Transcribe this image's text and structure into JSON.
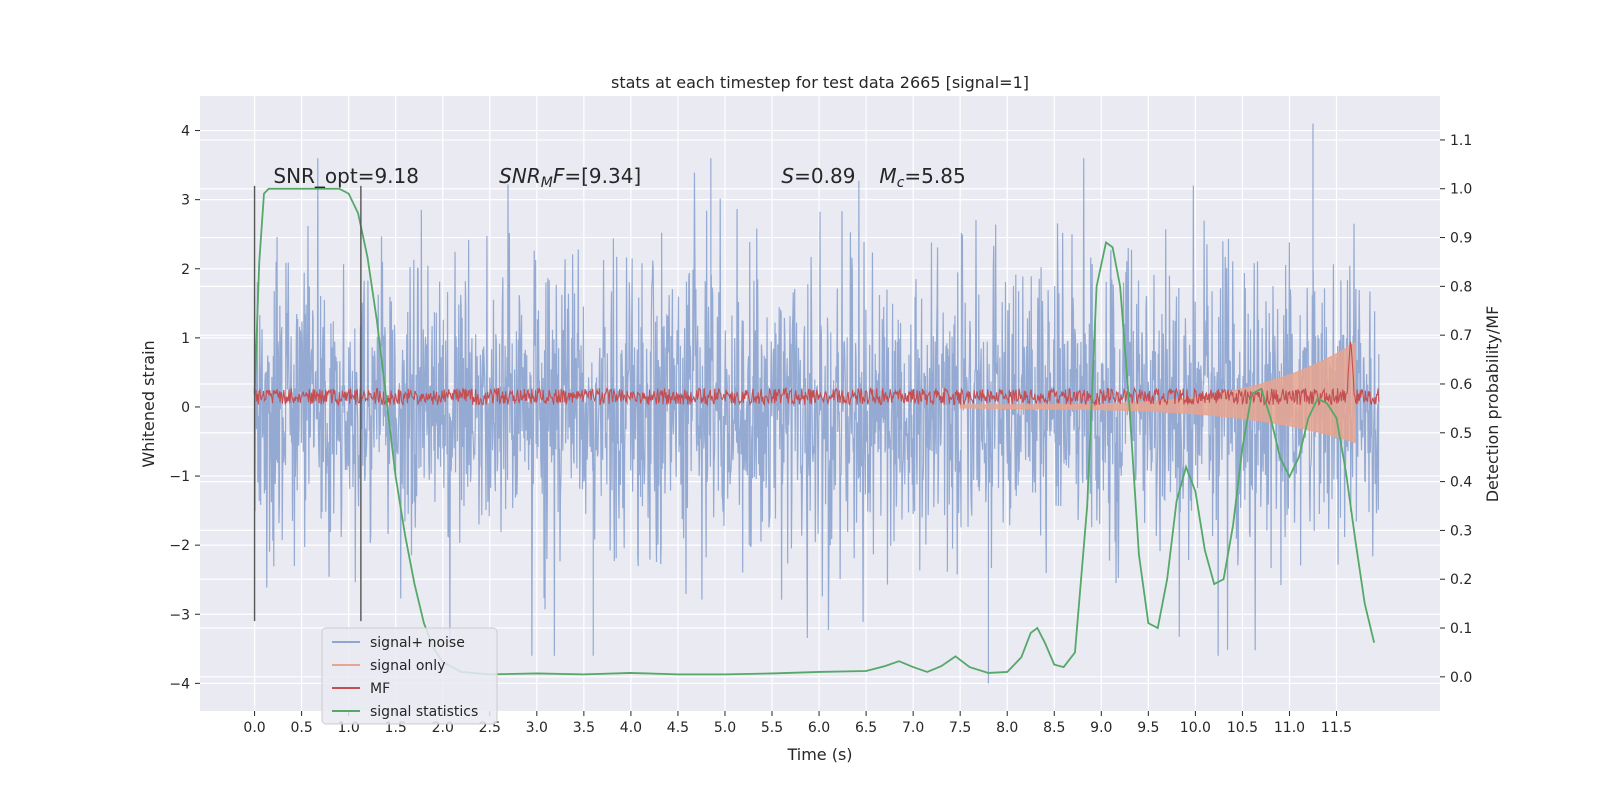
{
  "chart_data": {
    "type": "line",
    "title": "stats at each timestep for test data 2665 [signal=1]",
    "xlabel": "Time (s)",
    "ylabel": "Whitened strain",
    "y2label": "Detection probability/MF",
    "xlim": [
      -0.58,
      12.6
    ],
    "ylim": [
      -4.4,
      4.5
    ],
    "y2lim": [
      -0.07,
      1.19
    ],
    "xticks": [
      0.0,
      0.5,
      1.0,
      1.5,
      2.0,
      2.5,
      3.0,
      3.5,
      4.0,
      4.5,
      5.0,
      5.5,
      6.0,
      6.5,
      7.0,
      7.5,
      8.0,
      8.5,
      9.0,
      9.5,
      10.0,
      10.5,
      11.0,
      11.5
    ],
    "xtick_labels": [
      "0.0",
      "0.5",
      "1.0",
      "1.5",
      "2.0",
      "2.5",
      "3.0",
      "3.5",
      "4.0",
      "4.5",
      "5.0",
      "5.5",
      "6.0",
      "6.5",
      "7.0",
      "7.5",
      "8.0",
      "8.5",
      "9.0",
      "9.5",
      "10.0",
      "10.5",
      "11.0",
      "11.5"
    ],
    "yticks": [
      -4,
      -3,
      -2,
      -1,
      0,
      1,
      2,
      3,
      4
    ],
    "ytick_labels": [
      "−4",
      "−3",
      "−2",
      "−1",
      "0",
      "1",
      "2",
      "3",
      "4"
    ],
    "y2ticks": [
      0.0,
      0.1,
      0.2,
      0.3,
      0.4,
      0.5,
      0.6,
      0.7,
      0.8,
      0.9,
      1.0,
      1.1
    ],
    "y2tick_labels": [
      "0.0",
      "0.1",
      "0.2",
      "0.3",
      "0.4",
      "0.5",
      "0.6",
      "0.7",
      "0.8",
      "0.9",
      "1.0",
      "1.1"
    ],
    "grid": true,
    "legend_position": "bottom-left",
    "annotations": [
      {
        "text": "SNR_opt=9.18",
        "x": 0.2,
        "y": 3.3
      },
      {
        "text": "SNR_MF=[9.34]",
        "x": 2.6,
        "y": 3.3
      },
      {
        "text": "S=0.89   M_c=5.85",
        "x": 5.6,
        "y": 3.3
      }
    ],
    "vlines": [
      {
        "x": 0.0,
        "ymin": -3.1,
        "ymax": 3.2
      },
      {
        "x": 1.13,
        "ymin": -3.1,
        "ymax": 3.2
      }
    ],
    "series": [
      {
        "name": "signal+ noise",
        "color": "#8fa6d1",
        "axis": "left",
        "kind": "noise",
        "x_range": [
          0.0,
          11.95
        ],
        "std": 1.0,
        "note_peaks": [
          {
            "x": 11.25,
            "y": 4.1
          },
          {
            "x": 7.8,
            "y": -4.0
          },
          {
            "x": 3.6,
            "y": -3.6
          },
          {
            "x": 4.85,
            "y": 3.6
          }
        ]
      },
      {
        "name": "signal only",
        "color": "#e8a48e",
        "axis": "left",
        "kind": "chirp",
        "x_range": [
          7.5,
          11.7
        ],
        "peak_amplitude": 0.9
      },
      {
        "name": "MF",
        "color": "#c44e52",
        "axis": "left",
        "kind": "mf",
        "x_range": [
          0.0,
          11.95
        ],
        "mean": 0.15,
        "spread": 0.12,
        "peak": {
          "x": 11.65,
          "y": 1.0
        }
      },
      {
        "name": "signal statistics",
        "color": "#55a868",
        "axis": "right",
        "kind": "line",
        "x": [
          0.0,
          0.05,
          0.1,
          0.15,
          0.2,
          0.3,
          0.5,
          0.7,
          0.9,
          1.0,
          1.1,
          1.2,
          1.3,
          1.4,
          1.5,
          1.6,
          1.7,
          1.8,
          1.9,
          2.0,
          2.1,
          2.2,
          2.5,
          3.0,
          3.5,
          4.0,
          4.5,
          5.0,
          5.5,
          6.0,
          6.5,
          6.7,
          6.85,
          7.0,
          7.15,
          7.3,
          7.45,
          7.6,
          7.8,
          8.0,
          8.15,
          8.25,
          8.32,
          8.4,
          8.5,
          8.6,
          8.72,
          8.85,
          8.95,
          9.05,
          9.12,
          9.2,
          9.3,
          9.4,
          9.5,
          9.6,
          9.7,
          9.8,
          9.9,
          10.0,
          10.1,
          10.2,
          10.3,
          10.4,
          10.5,
          10.6,
          10.7,
          10.8,
          10.9,
          11.0,
          11.1,
          11.2,
          11.3,
          11.4,
          11.5,
          11.6,
          11.7,
          11.8,
          11.9
        ],
        "y": [
          0.58,
          0.85,
          0.99,
          1.0,
          1.0,
          1.0,
          1.0,
          1.0,
          1.0,
          0.99,
          0.95,
          0.86,
          0.73,
          0.57,
          0.41,
          0.29,
          0.19,
          0.11,
          0.06,
          0.03,
          0.02,
          0.01,
          0.005,
          0.007,
          0.005,
          0.008,
          0.005,
          0.005,
          0.007,
          0.01,
          0.012,
          0.022,
          0.032,
          0.02,
          0.01,
          0.022,
          0.042,
          0.02,
          0.008,
          0.01,
          0.04,
          0.09,
          0.1,
          0.07,
          0.025,
          0.02,
          0.05,
          0.35,
          0.8,
          0.89,
          0.88,
          0.8,
          0.55,
          0.25,
          0.11,
          0.1,
          0.2,
          0.36,
          0.43,
          0.38,
          0.26,
          0.19,
          0.2,
          0.31,
          0.47,
          0.58,
          0.59,
          0.53,
          0.45,
          0.41,
          0.45,
          0.53,
          0.57,
          0.56,
          0.53,
          0.42,
          0.28,
          0.15,
          0.07
        ]
      }
    ]
  }
}
